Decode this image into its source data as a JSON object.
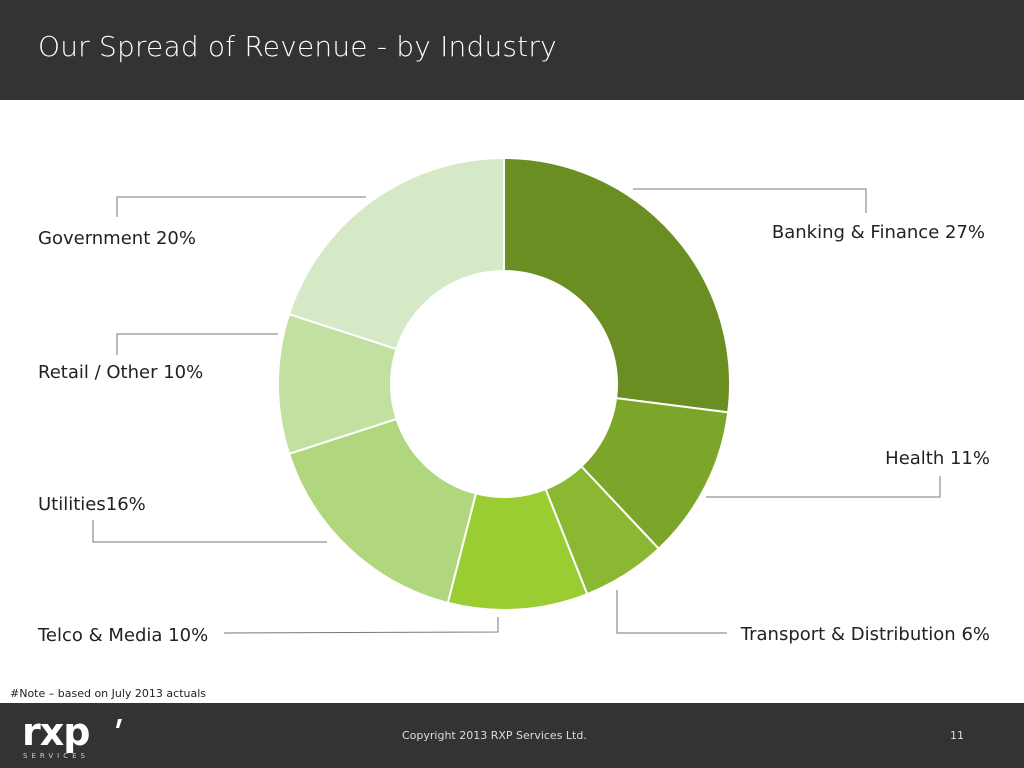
{
  "slide": {
    "title": "Our Spread of Revenue - by Industry",
    "note": "#Note – based on July 2013 actuals"
  },
  "footer": {
    "copyright": "Copyright 2013 RXP Services Ltd.",
    "page_number": "11",
    "logo_text": "rxp",
    "logo_subtext": "SERVICES"
  },
  "chart_data": {
    "type": "pie",
    "style": "donut",
    "slices": [
      {
        "name": "Banking & Finance",
        "value": 27,
        "label": "Banking & Finance 27%",
        "color": "#6b8e23"
      },
      {
        "name": "Health",
        "value": 11,
        "label": "Health 11%",
        "color": "#7ca62a"
      },
      {
        "name": "Transport & Distribution",
        "value": 6,
        "label": "Transport & Distribution 6%",
        "color": "#8bb832"
      },
      {
        "name": "Telco & Media",
        "value": 10,
        "label": "Telco & Media 10%",
        "color": "#9acd32"
      },
      {
        "name": "Utilities",
        "value": 16,
        "label": "Utilities16%",
        "color": "#b0d67e"
      },
      {
        "name": "Retail / Other",
        "value": 10,
        "label": "Retail / Other 10%",
        "color": "#c2e0a2"
      },
      {
        "name": "Government",
        "value": 20,
        "label": "Government 20%",
        "color": "#d6e9c6"
      }
    ]
  }
}
